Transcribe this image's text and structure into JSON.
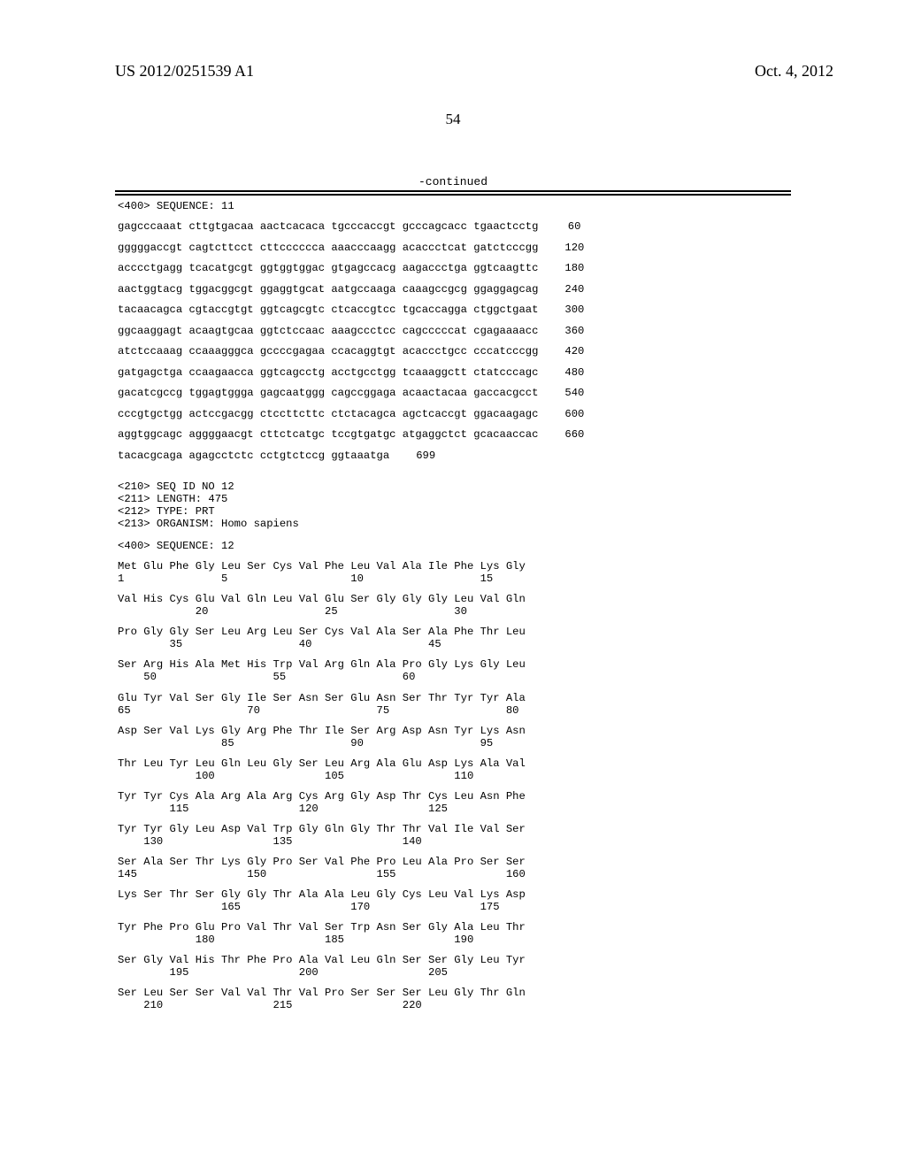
{
  "header": {
    "left": "US 2012/0251539 A1",
    "right": "Oct. 4, 2012"
  },
  "page_number": "54",
  "continued_label": "-continued",
  "seq11_header": "<400> SEQUENCE: 11",
  "dna": {
    "rows": [
      {
        "seq": "gagcccaaat cttgtgacaa aactcacaca tgcccaccgt gcccagcacc tgaactcctg",
        "pos": "60"
      },
      {
        "seq": "gggggaccgt cagtcttcct cttcccccca aaacccaagg acaccctcat gatctcccgg",
        "pos": "120"
      },
      {
        "seq": "acccctgagg tcacatgcgt ggtggtggac gtgagccacg aagaccctga ggtcaagttc",
        "pos": "180"
      },
      {
        "seq": "aactggtacg tggacggcgt ggaggtgcat aatgccaaga caaagccgcg ggaggagcag",
        "pos": "240"
      },
      {
        "seq": "tacaacagca cgtaccgtgt ggtcagcgtc ctcaccgtcc tgcaccagga ctggctgaat",
        "pos": "300"
      },
      {
        "seq": "ggcaaggagt acaagtgcaa ggtctccaac aaagccctcc cagcccccat cgagaaaacc",
        "pos": "360"
      },
      {
        "seq": "atctccaaag ccaaagggca gccccgagaa ccacaggtgt acaccctgcc cccatcccgg",
        "pos": "420"
      },
      {
        "seq": "gatgagctga ccaagaacca ggtcagcctg acctgcctgg tcaaaggctt ctatcccagc",
        "pos": "480"
      },
      {
        "seq": "gacatcgccg tggagtggga gagcaatggg cagccggaga acaactacaa gaccacgcct",
        "pos": "540"
      },
      {
        "seq": "cccgtgctgg actccgacgg ctccttcttc ctctacagca agctcaccgt ggacaagagc",
        "pos": "600"
      },
      {
        "seq": "aggtggcagc aggggaacgt cttctcatgc tccgtgatgc atgaggctct gcacaaccac",
        "pos": "660"
      },
      {
        "seq": "tacacgcaga agagcctctc cctgtctccg ggtaaatga",
        "pos": "699"
      }
    ]
  },
  "seq12_meta": [
    "<210> SEQ ID NO 12",
    "<211> LENGTH: 475",
    "<212> TYPE: PRT",
    "<213> ORGANISM: Homo sapiens"
  ],
  "seq12_header": "<400> SEQUENCE: 12",
  "protein": {
    "rows": [
      {
        "aa": "Met Glu Phe Gly Leu Ser Cys Val Phe Leu Val Ala Ile Phe Lys Gly",
        "nm": "1               5                   10                  15"
      },
      {
        "aa": "Val His Cys Glu Val Gln Leu Val Glu Ser Gly Gly Gly Leu Val Gln",
        "nm": "            20                  25                  30"
      },
      {
        "aa": "Pro Gly Gly Ser Leu Arg Leu Ser Cys Val Ala Ser Ala Phe Thr Leu",
        "nm": "        35                  40                  45"
      },
      {
        "aa": "Ser Arg His Ala Met His Trp Val Arg Gln Ala Pro Gly Lys Gly Leu",
        "nm": "    50                  55                  60"
      },
      {
        "aa": "Glu Tyr Val Ser Gly Ile Ser Asn Ser Glu Asn Ser Thr Tyr Tyr Ala",
        "nm": "65                  70                  75                  80"
      },
      {
        "aa": "Asp Ser Val Lys Gly Arg Phe Thr Ile Ser Arg Asp Asn Tyr Lys Asn",
        "nm": "                85                  90                  95"
      },
      {
        "aa": "Thr Leu Tyr Leu Gln Leu Gly Ser Leu Arg Ala Glu Asp Lys Ala Val",
        "nm": "            100                 105                 110"
      },
      {
        "aa": "Tyr Tyr Cys Ala Arg Ala Arg Cys Arg Gly Asp Thr Cys Leu Asn Phe",
        "nm": "        115                 120                 125"
      },
      {
        "aa": "Tyr Tyr Gly Leu Asp Val Trp Gly Gln Gly Thr Thr Val Ile Val Ser",
        "nm": "    130                 135                 140"
      },
      {
        "aa": "Ser Ala Ser Thr Lys Gly Pro Ser Val Phe Pro Leu Ala Pro Ser Ser",
        "nm": "145                 150                 155                 160"
      },
      {
        "aa": "Lys Ser Thr Ser Gly Gly Thr Ala Ala Leu Gly Cys Leu Val Lys Asp",
        "nm": "                165                 170                 175"
      },
      {
        "aa": "Tyr Phe Pro Glu Pro Val Thr Val Ser Trp Asn Ser Gly Ala Leu Thr",
        "nm": "            180                 185                 190"
      },
      {
        "aa": "Ser Gly Val His Thr Phe Pro Ala Val Leu Gln Ser Ser Gly Leu Tyr",
        "nm": "        195                 200                 205"
      },
      {
        "aa": "Ser Leu Ser Ser Val Val Thr Val Pro Ser Ser Ser Leu Gly Thr Gln",
        "nm": "    210                 215                 220"
      }
    ]
  }
}
